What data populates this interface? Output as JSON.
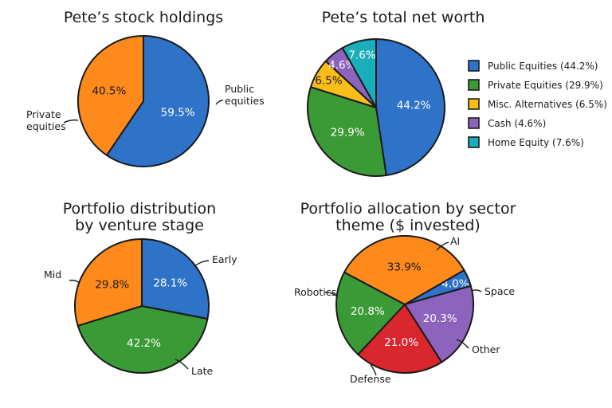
{
  "colors": {
    "blue": "#2f73c9",
    "orange": "#ff8a1c",
    "green": "#3a9a35",
    "yellow": "#fbbd1a",
    "purple": "#8c63bd",
    "cyan": "#1aaeba",
    "red": "#d9272d"
  },
  "chart_data": [
    {
      "type": "pie",
      "title": "Pete’s stock holdings",
      "start_angle_deg": 0,
      "labels_style": "outside",
      "slices": [
        {
          "name": "Public equities",
          "value": 59.5,
          "label": "59.5%",
          "color": "#2f73c9",
          "outside_label": [
            "Public",
            "equities"
          ]
        },
        {
          "name": "Private equities",
          "value": 40.5,
          "label": "40.5%",
          "color": "#ff8a1c",
          "outside_label": [
            "Private",
            "equities"
          ]
        }
      ]
    },
    {
      "type": "pie",
      "title": "Pete’s total net worth",
      "start_angle_deg": 0,
      "labels_style": "legend",
      "legend_position": "right",
      "slices": [
        {
          "name": "Public Equities",
          "value": 44.2,
          "label": "44.2%",
          "color": "#2f73c9",
          "legend": "Public Equities (44.2%)"
        },
        {
          "name": "Private Equities",
          "value": 29.9,
          "label": "29.9%",
          "color": "#3a9a35",
          "legend": "Private Equities (29.9%)"
        },
        {
          "name": "Misc. Alternatives",
          "value": 6.5,
          "label": "6.5%",
          "color": "#fbbd1a",
          "legend": "Misc. Alternatives (6.5%)"
        },
        {
          "name": "Cash",
          "value": 4.6,
          "label": "4.6%",
          "color": "#8c63bd",
          "legend": "Cash (4.6%)"
        },
        {
          "name": "Home Equity",
          "value": 7.6,
          "label": "7.6%",
          "color": "#1aaeba",
          "legend": "Home Equity (7.6%)"
        }
      ]
    },
    {
      "type": "pie",
      "title": [
        "Portfolio distribution",
        "by venture stage"
      ],
      "start_angle_deg": 0,
      "labels_style": "outside",
      "slices": [
        {
          "name": "Early",
          "value": 28.1,
          "label": "28.1%",
          "color": "#2f73c9",
          "outside_label": [
            "Early"
          ]
        },
        {
          "name": "Late",
          "value": 42.2,
          "label": "42.2%",
          "color": "#3a9a35",
          "outside_label": [
            "Late"
          ]
        },
        {
          "name": "Mid",
          "value": 29.8,
          "label": "29.8%",
          "color": "#ff8a1c",
          "outside_label": [
            "Mid"
          ]
        }
      ]
    },
    {
      "type": "pie",
      "title": [
        "Portfolio allocation by sector",
        "theme ($ invested)"
      ],
      "start_angle_deg": 60,
      "labels_style": "outside",
      "slices": [
        {
          "name": "Space",
          "value": 4.0,
          "label": "4.0%",
          "color": "#2f73c9",
          "outside_label": [
            "Space"
          ]
        },
        {
          "name": "Other",
          "value": 20.3,
          "label": "20.3%",
          "color": "#8c63bd",
          "outside_label": [
            "Other"
          ]
        },
        {
          "name": "Defense",
          "value": 21.0,
          "label": "21.0%",
          "color": "#d9272d",
          "outside_label": [
            "Defense"
          ]
        },
        {
          "name": "Robotics",
          "value": 20.8,
          "label": "20.8%",
          "color": "#3a9a35",
          "outside_label": [
            "Robotics"
          ]
        },
        {
          "name": "AI",
          "value": 33.9,
          "label": "33.9%",
          "color": "#ff8a1c",
          "outside_label": [
            "AI"
          ]
        }
      ]
    }
  ]
}
